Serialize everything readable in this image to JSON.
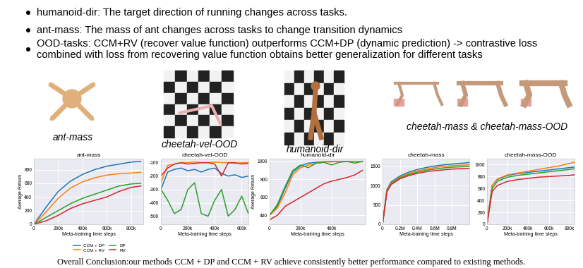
{
  "bullets": [
    "humanoid-dir: The target direction of running changes across tasks.",
    "ant-mass: The mass of ant changes across tasks to change transition dynamics",
    "OOD-tasks: CCM+RV (recover value function) outperforms CCM+DP (dynamic prediction) -> contrastive loss combined with loss from recovering value function obtains better generalization for different tasks"
  ],
  "image_captions": [
    "ant-mass",
    "cheetah-vel-OOD",
    "humanoid-dir",
    "cheetah-mass & cheetah-mass-OOD"
  ],
  "chart_data": [
    {
      "type": "line",
      "title": "ant-mass",
      "xlabel": "Meta-training time steps",
      "ylabel": "Average Return",
      "xlim": [
        0,
        900000
      ],
      "ylim": [
        0,
        960
      ],
      "xticks": [
        0,
        {
          "value": 200000,
          "label": "200k"
        },
        {
          "value": 400000,
          "label": "400k"
        },
        {
          "value": 600000,
          "label": "600k"
        },
        {
          "value": 800000,
          "label": "800k"
        }
      ],
      "yticks": [
        0,
        200,
        400,
        600,
        800
      ],
      "grid": true,
      "legend": "upper center",
      "x": [
        0,
        100000,
        200000,
        300000,
        400000,
        500000,
        600000,
        700000,
        800000,
        880000
      ],
      "series": [
        {
          "name": "CCM + DP",
          "color": "#1f77b4",
          "values": [
            0,
            250,
            480,
            630,
            730,
            800,
            850,
            880,
            910,
            920
          ]
        },
        {
          "name": "CCM + RV",
          "color": "#ff7f0e",
          "values": [
            0,
            180,
            380,
            530,
            620,
            680,
            720,
            740,
            750,
            760
          ]
        },
        {
          "name": "DP",
          "color": "#2ca02c",
          "values": [
            0,
            100,
            200,
            300,
            380,
            440,
            500,
            560,
            590,
            600
          ]
        },
        {
          "name": "RV",
          "color": "#d62728",
          "values": [
            0,
            50,
            130,
            230,
            300,
            350,
            400,
            480,
            540,
            560
          ]
        }
      ]
    },
    {
      "type": "line",
      "title": "cheetah-vel-OOD",
      "xlabel": "Meta-training time steps",
      "xlim": [
        0,
        650000
      ],
      "ylim": [
        -560,
        -70
      ],
      "xticks": [
        0,
        {
          "value": 200000,
          "label": "200k"
        },
        {
          "value": 400000,
          "label": "400k"
        },
        {
          "value": 600000,
          "label": "600k"
        }
      ],
      "yticks": [
        -500,
        -400,
        -300,
        -200,
        -100
      ],
      "grid": true,
      "x": [
        0,
        50000,
        100000,
        150000,
        200000,
        250000,
        300000,
        350000,
        400000,
        450000,
        500000,
        550000,
        600000,
        650000
      ],
      "series": [
        {
          "name": "CCM + DP",
          "color": "#1f77b4",
          "values": [
            -300,
            -170,
            -150,
            -140,
            -160,
            -150,
            -170,
            -150,
            -140,
            -180,
            -200,
            -190,
            -210,
            -200
          ]
        },
        {
          "name": "CCM + RV",
          "color": "#ff7f0e",
          "values": [
            -250,
            -120,
            -110,
            -100,
            -100,
            -95,
            -100,
            -100,
            -95,
            -100,
            -100,
            -105,
            -100,
            -100
          ]
        },
        {
          "name": "DP",
          "color": "#2ca02c",
          "values": [
            -300,
            -380,
            -480,
            -450,
            -300,
            -250,
            -480,
            -500,
            -380,
            -300,
            -500,
            -450,
            -350,
            -480
          ]
        },
        {
          "name": "RV",
          "color": "#d62728",
          "values": [
            -200,
            -140,
            -110,
            -100,
            -110,
            -105,
            -100,
            -100,
            -110,
            -200,
            -100,
            -100,
            -110,
            -105
          ]
        }
      ]
    },
    {
      "type": "line",
      "title": "humanoid-dir",
      "xlabel": "Meta-training time steps",
      "ylabel": "Average Return",
      "xlim": [
        0,
        620000
      ],
      "ylim": [
        300,
        1030
      ],
      "xticks": [
        0,
        {
          "value": 200000,
          "label": "200k"
        },
        {
          "value": 400000,
          "label": "400k"
        }
      ],
      "yticks": [
        400,
        600,
        800,
        1000
      ],
      "grid": true,
      "x": [
        0,
        50000,
        100000,
        150000,
        200000,
        250000,
        300000,
        350000,
        400000,
        450000,
        500000,
        550000,
        600000
      ],
      "series": [
        {
          "name": "CCM + DP",
          "color": "#1f77b4",
          "values": [
            400,
            500,
            700,
            880,
            950,
            980,
            990,
            995,
            1000,
            1000,
            1000,
            1000,
            1000
          ]
        },
        {
          "name": "CCM + RV",
          "color": "#ff7f0e",
          "values": [
            400,
            480,
            650,
            850,
            930,
            960,
            980,
            990,
            995,
            1000,
            1000,
            1000,
            1000
          ]
        },
        {
          "name": "DP",
          "color": "#2ca02c",
          "values": [
            400,
            520,
            720,
            900,
            960,
            930,
            980,
            990,
            960,
            990,
            1000,
            980,
            1000
          ]
        },
        {
          "name": "RV",
          "color": "#d62728",
          "values": [
            350,
            400,
            500,
            550,
            600,
            650,
            700,
            750,
            780,
            800,
            820,
            850,
            900
          ]
        }
      ]
    },
    {
      "type": "line",
      "title": "cheetah-mass",
      "xlabel": "Meta-training time steps",
      "xlim": [
        0,
        1000000
      ],
      "ylim": [
        0,
        1700
      ],
      "xticks": [
        0,
        {
          "value": 200000,
          "label": "0.2M"
        },
        {
          "value": 400000,
          "label": "0.4M"
        },
        {
          "value": 600000,
          "label": "0.6M"
        },
        {
          "value": 800000,
          "label": "0.8M"
        }
      ],
      "yticks": [
        0,
        500,
        1000,
        1500
      ],
      "grid": true,
      "x": [
        0,
        50000,
        100000,
        200000,
        300000,
        400000,
        500000,
        600000,
        700000,
        800000,
        900000,
        1000000
      ],
      "series": [
        {
          "name": "CCM + DP",
          "color": "#1f77b4",
          "values": [
            0,
            900,
            1100,
            1250,
            1350,
            1420,
            1470,
            1510,
            1540,
            1560,
            1580,
            1600
          ]
        },
        {
          "name": "CCM + RV",
          "color": "#ff7f0e",
          "values": [
            0,
            880,
            1070,
            1220,
            1320,
            1380,
            1430,
            1470,
            1500,
            1520,
            1530,
            1540
          ]
        },
        {
          "name": "DP",
          "color": "#2ca02c",
          "values": [
            0,
            860,
            1050,
            1200,
            1290,
            1350,
            1400,
            1430,
            1460,
            1480,
            1490,
            1500
          ]
        },
        {
          "name": "RV",
          "color": "#d62728",
          "values": [
            0,
            840,
            1030,
            1180,
            1260,
            1320,
            1360,
            1390,
            1410,
            1430,
            1440,
            1450
          ]
        }
      ]
    },
    {
      "type": "line",
      "title": "cheetah-mass-OOD",
      "xlabel": "Meta-training time steps",
      "xlim": [
        0,
        850000
      ],
      "ylim": [
        0,
        1100
      ],
      "xticks": [
        0,
        {
          "value": 200000,
          "label": "200k"
        },
        {
          "value": 400000,
          "label": "400k"
        },
        {
          "value": 600000,
          "label": "600k"
        },
        {
          "value": 800000,
          "label": "800k"
        }
      ],
      "yticks": [
        0,
        200,
        400,
        600,
        800,
        1000
      ],
      "grid": true,
      "x": [
        0,
        50000,
        100000,
        200000,
        300000,
        400000,
        500000,
        600000,
        700000,
        800000,
        850000
      ],
      "series": [
        {
          "name": "CCM + DP",
          "color": "#1f77b4",
          "values": [
            0,
            650,
            750,
            820,
            850,
            870,
            890,
            910,
            930,
            950,
            960
          ]
        },
        {
          "name": "CCM + RV",
          "color": "#ff7f0e",
          "values": [
            0,
            650,
            760,
            830,
            860,
            890,
            920,
            950,
            980,
            1020,
            1040
          ]
        },
        {
          "name": "DP",
          "color": "#2ca02c",
          "values": [
            0,
            600,
            720,
            790,
            820,
            840,
            860,
            880,
            900,
            920,
            930
          ]
        },
        {
          "name": "RV",
          "color": "#d62728",
          "values": [
            0,
            550,
            650,
            720,
            750,
            770,
            790,
            800,
            810,
            820,
            830
          ]
        }
      ]
    }
  ],
  "conclusion": "Overall Conclusion:our methods CCM + DP and CCM + RV achieve consistently better performance compared to existing methods."
}
